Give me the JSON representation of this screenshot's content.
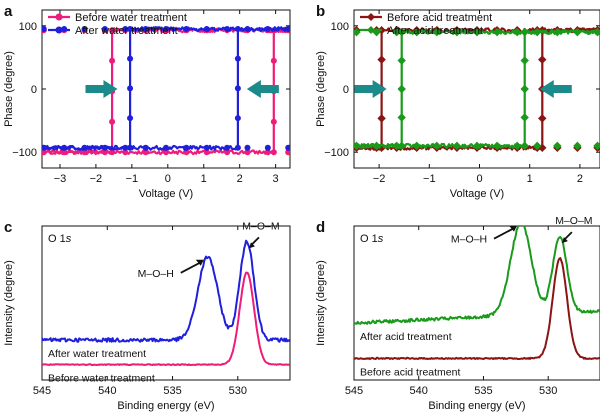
{
  "figure": {
    "panels": [
      {
        "id": "a",
        "label": "a",
        "legend": [
          "Before water treatment",
          "After water treatment"
        ]
      },
      {
        "id": "b",
        "label": "b",
        "legend": [
          "Before acid treatment",
          "After acid treatment"
        ]
      },
      {
        "id": "c",
        "label": "c",
        "corner_label": "O 1s"
      },
      {
        "id": "d",
        "label": "d",
        "corner_label": "O 1s"
      }
    ]
  },
  "colors": {
    "before_water": "#ee1c7a",
    "after_water": "#1f1fdc",
    "before_acid": "#8b1414",
    "after_acid": "#1a9a1a",
    "arrow_fill": "#1a8a8a"
  },
  "chart_data": [
    {
      "panel": "a",
      "type": "line",
      "title": "",
      "xlabel": "Voltage (V)",
      "ylabel": "Phase (degree)",
      "xlim": [
        -3.5,
        3.4
      ],
      "ylim": [
        -125,
        125
      ],
      "xticks": [
        -3,
        -2,
        -1,
        0,
        1,
        2,
        3
      ],
      "yticks": [
        -100,
        0,
        100
      ],
      "legend_position": "top-left",
      "series": [
        {
          "name": "Before water treatment",
          "color_key": "before_water",
          "marker": "circle",
          "loop": {
            "low": -100,
            "high": 93,
            "switch_up": 2.95,
            "switch_down": -1.55
          }
        },
        {
          "name": "After water treatment",
          "color_key": "after_water",
          "marker": "circle",
          "loop": {
            "low": -93,
            "high": 95,
            "switch_up": 1.95,
            "switch_down": -1.05
          }
        }
      ],
      "annotations": [
        "arrow pointing right at V = -1.4",
        "arrow pointing left at V = 2.2"
      ]
    },
    {
      "panel": "b",
      "type": "line",
      "title": "",
      "xlabel": "Voltage (V)",
      "ylabel": "Phase (degree)",
      "xlim": [
        -2.5,
        2.4
      ],
      "ylim": [
        -125,
        125
      ],
      "xticks": [
        -2,
        -1,
        0,
        1,
        2
      ],
      "yticks": [
        -100,
        0,
        100
      ],
      "legend_position": "top-left",
      "series": [
        {
          "name": "Before acid treatment",
          "color_key": "before_acid",
          "marker": "diamond",
          "loop": {
            "low": -93,
            "high": 93,
            "switch_up": 1.25,
            "switch_down": -1.95
          }
        },
        {
          "name": "After acid treatment",
          "color_key": "after_acid",
          "marker": "diamond",
          "loop": {
            "low": -90,
            "high": 90,
            "switch_up": 0.9,
            "switch_down": -1.55
          }
        }
      ],
      "annotations": [
        "arrow pointing right at V = -1.85",
        "arrow pointing left at V = 1.2"
      ]
    },
    {
      "panel": "c",
      "type": "line",
      "title": "",
      "xlabel": "Binding energy (eV)",
      "ylabel": "Intensity (degree)",
      "xlim": [
        545,
        526
      ],
      "x_reversed": true,
      "ylim": [
        0,
        1
      ],
      "xticks": [
        545,
        540,
        535,
        530
      ],
      "yticks": [],
      "series": [
        {
          "name": "After water treatment",
          "color_key": "after_water",
          "baseline": 0.26,
          "slope": 0.0,
          "noise": 0.012,
          "peaks": [
            {
              "x": 532.3,
              "height": 0.54,
              "width": 0.75
            },
            {
              "x": 529.3,
              "height": 0.64,
              "width": 0.55
            }
          ]
        },
        {
          "name": "Before water treatment",
          "color_key": "before_water",
          "baseline": 0.1,
          "slope": 0.0,
          "noise": 0.003,
          "peaks": [
            {
              "x": 529.3,
              "height": 0.6,
              "width": 0.55
            }
          ]
        }
      ],
      "annotations": [
        {
          "text": "M–O–H",
          "peak_x": 532.3
        },
        {
          "text": "M–O–M",
          "peak_x": 529.3
        },
        {
          "text": "After water treatment"
        },
        {
          "text": "Before water treatment"
        }
      ]
    },
    {
      "panel": "d",
      "type": "line",
      "title": "",
      "xlabel": "Binding energy (eV)",
      "ylabel": "Intensity (degree)",
      "xlim": [
        545,
        526
      ],
      "x_reversed": true,
      "ylim": [
        0,
        1
      ],
      "xticks": [
        545,
        540,
        535,
        530
      ],
      "yticks": [],
      "series": [
        {
          "name": "After acid treatment",
          "color_key": "after_acid",
          "baseline": 0.37,
          "slope": 0.004,
          "noise": 0.01,
          "peaks": [
            {
              "x": 532.1,
              "height": 0.6,
              "width": 0.8
            },
            {
              "x": 529.1,
              "height": 0.5,
              "width": 0.55
            }
          ]
        },
        {
          "name": "Before acid treatment",
          "color_key": "before_acid",
          "baseline": 0.14,
          "slope": 0.0,
          "noise": 0.004,
          "peaks": [
            {
              "x": 529.1,
              "height": 0.65,
              "width": 0.55
            }
          ]
        }
      ],
      "annotations": [
        {
          "text": "M–O–H",
          "peak_x": 532.1
        },
        {
          "text": "M–O–M",
          "peak_x": 529.1
        },
        {
          "text": "After acid treatment"
        },
        {
          "text": "Before acid treatment"
        }
      ]
    }
  ]
}
